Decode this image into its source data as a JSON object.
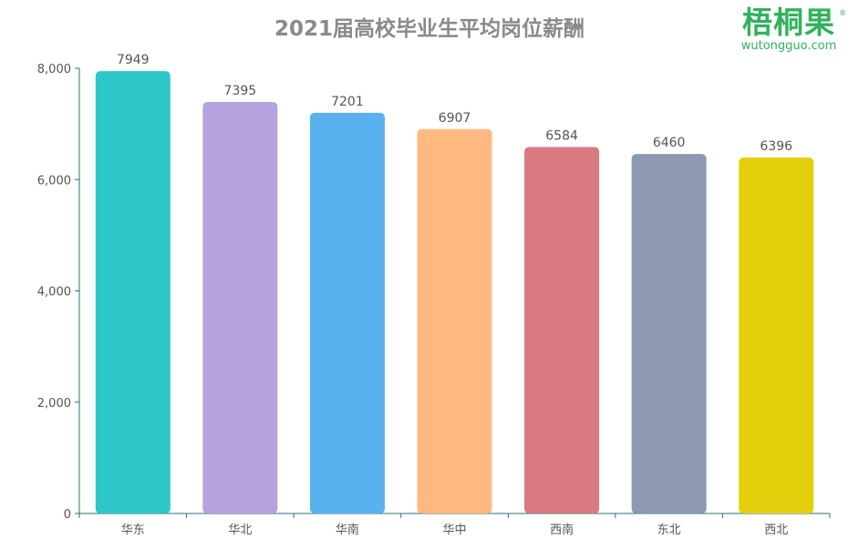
{
  "logo": {
    "name": "梧桐果",
    "url": "wutongguo.com",
    "mark": "®"
  },
  "chart_data": {
    "type": "bar",
    "title": "2021届高校毕业生平均岗位薪酬",
    "categories": [
      "华东",
      "华北",
      "华南",
      "华中",
      "西南",
      "东北",
      "西北"
    ],
    "values": [
      7949,
      7395,
      7201,
      6907,
      6584,
      6460,
      6396
    ],
    "colors": [
      "#2ec7c9",
      "#b6a2de",
      "#5ab1ef",
      "#ffb980",
      "#d87a80",
      "#8d98b3",
      "#e5cf0d"
    ],
    "ylim": [
      0,
      8000
    ],
    "yticks": [
      0,
      2000,
      4000,
      6000,
      8000
    ],
    "ytick_labels": [
      "0",
      "2,000",
      "4,000",
      "6,000",
      "8,000"
    ],
    "xlabel": "",
    "ylabel": "",
    "grid": false,
    "axis_color": "#2f6f7e"
  }
}
